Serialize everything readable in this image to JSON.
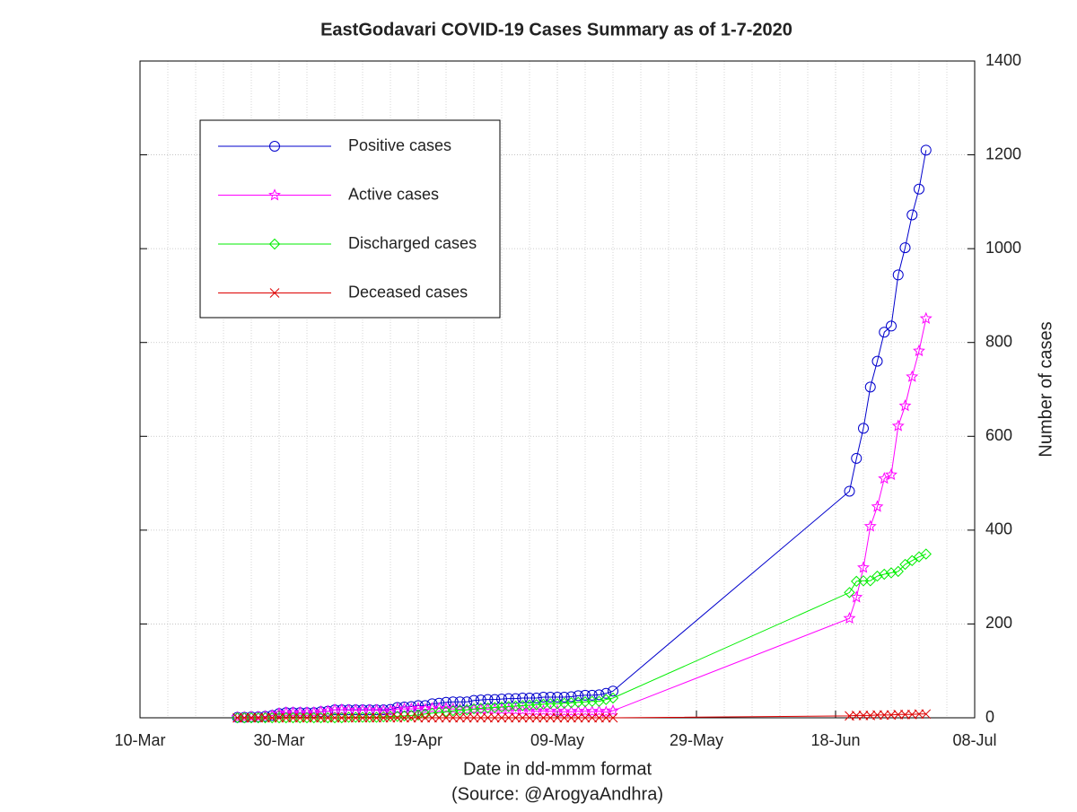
{
  "chart_data": {
    "type": "line",
    "title": "EastGodavari COVID-19 Cases Summary as of 1-7-2020",
    "x_label": "Date in dd-mmm format",
    "source": "(Source: @ArogyaAndhra)",
    "y_label": "Number of cases",
    "x": [
      "24-Mar",
      "25-Mar",
      "26-Mar",
      "27-Mar",
      "28-Mar",
      "29-Mar",
      "30-Mar",
      "31-Mar",
      "01-Apr",
      "02-Apr",
      "03-Apr",
      "04-Apr",
      "05-Apr",
      "06-Apr",
      "07-Apr",
      "08-Apr",
      "09-Apr",
      "10-Apr",
      "11-Apr",
      "12-Apr",
      "13-Apr",
      "14-Apr",
      "15-Apr",
      "16-Apr",
      "17-Apr",
      "18-Apr",
      "19-Apr",
      "20-Apr",
      "21-Apr",
      "22-Apr",
      "23-Apr",
      "24-Apr",
      "25-Apr",
      "26-Apr",
      "27-Apr",
      "28-Apr",
      "29-Apr",
      "30-Apr",
      "01-May",
      "02-May",
      "03-May",
      "04-May",
      "05-May",
      "06-May",
      "07-May",
      "08-May",
      "09-May",
      "10-May",
      "11-May",
      "12-May",
      "13-May",
      "14-May",
      "15-May",
      "16-May",
      "17-May",
      "20-Jun",
      "21-Jun",
      "22-Jun",
      "23-Jun",
      "24-Jun",
      "25-Jun",
      "26-Jun",
      "27-Jun",
      "28-Jun",
      "29-Jun",
      "30-Jun",
      "01-Jul"
    ],
    "series": [
      {
        "name": "Positive cases",
        "color": "#0000cc",
        "marker": "circle",
        "values": [
          1,
          1,
          2,
          2,
          3,
          5,
          9,
          11,
          11,
          11,
          11,
          11,
          13,
          14,
          17,
          17,
          17,
          17,
          17,
          17,
          17,
          17,
          18,
          22,
          23,
          24,
          26,
          26,
          30,
          31,
          33,
          34,
          34,
          34,
          37,
          38,
          39,
          39,
          40,
          41,
          41,
          42,
          42,
          42,
          44,
          44,
          44,
          44,
          45,
          47,
          48,
          48,
          49,
          52,
          57,
          483,
          553,
          617,
          705,
          760,
          822,
          835,
          944,
          1002,
          1072,
          1127,
          1210
        ]
      },
      {
        "name": "Active cases",
        "color": "#ff00ff",
        "marker": "star",
        "values": [
          1,
          1,
          2,
          2,
          3,
          5,
          9,
          11,
          11,
          11,
          11,
          11,
          13,
          14,
          17,
          17,
          16,
          16,
          16,
          16,
          16,
          15,
          15,
          19,
          19,
          19,
          20,
          18,
          20,
          20,
          20,
          19,
          18,
          17,
          18,
          18,
          18,
          17,
          17,
          17,
          16,
          16,
          15,
          14,
          15,
          14,
          14,
          13,
          13,
          14,
          14,
          13,
          14,
          12,
          15,
          212,
          257,
          320,
          408,
          450,
          510,
          518,
          622,
          665,
          727,
          782,
          851
        ]
      },
      {
        "name": "Discharged cases",
        "color": "#00ee00",
        "marker": "diamond",
        "values": [
          0,
          0,
          0,
          0,
          0,
          0,
          0,
          0,
          0,
          0,
          0,
          0,
          0,
          0,
          0,
          0,
          1,
          1,
          1,
          1,
          1,
          2,
          3,
          3,
          4,
          5,
          6,
          8,
          10,
          11,
          13,
          15,
          16,
          17,
          19,
          20,
          21,
          22,
          23,
          24,
          25,
          26,
          27,
          28,
          29,
          30,
          30,
          31,
          32,
          33,
          34,
          35,
          35,
          39,
          42,
          267,
          291,
          292,
          292,
          302,
          306,
          309,
          312,
          327,
          335,
          343,
          349
        ]
      },
      {
        "name": "Deceased cases",
        "color": "#dd0000",
        "marker": "cross",
        "values": [
          0,
          0,
          0,
          0,
          0,
          0,
          0,
          0,
          0,
          0,
          0,
          0,
          0,
          0,
          0,
          0,
          0,
          0,
          0,
          0,
          0,
          0,
          0,
          0,
          0,
          0,
          0,
          0,
          0,
          0,
          0,
          0,
          0,
          0,
          0,
          0,
          0,
          0,
          0,
          0,
          0,
          0,
          0,
          0,
          0,
          0,
          0,
          0,
          0,
          0,
          0,
          0,
          0,
          0,
          0,
          4,
          5,
          5,
          5,
          6,
          6,
          6,
          7,
          7,
          7,
          8,
          8
        ]
      }
    ],
    "xlim": [
      "10-Mar",
      "08-Jul"
    ],
    "xticks": [
      "10-Mar",
      "30-Mar",
      "19-Apr",
      "09-May",
      "29-May",
      "18-Jun",
      "08-Jul"
    ],
    "ylim": [
      0,
      1400
    ],
    "yticks": [
      0,
      200,
      400,
      600,
      800,
      1000,
      1200,
      1400
    ],
    "grid": true,
    "legend": "upper left"
  }
}
